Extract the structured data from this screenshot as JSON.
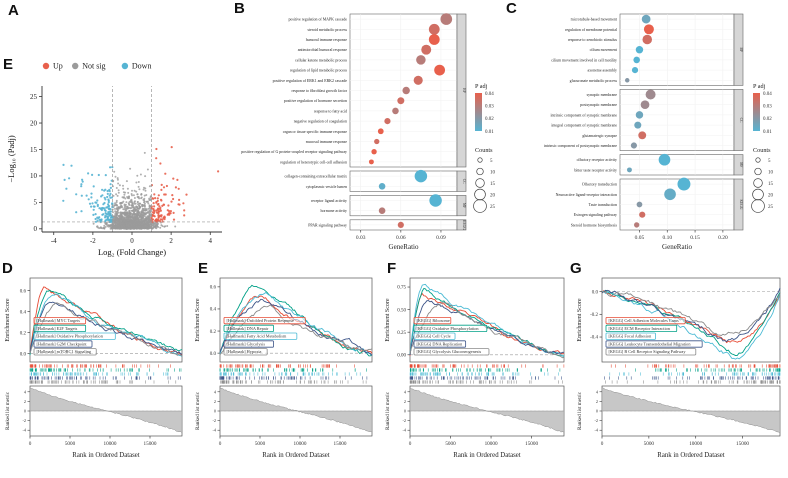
{
  "panel_labels": {
    "a": "A",
    "b": "B",
    "c": "C",
    "d": "D",
    "e": "E",
    "f": "F",
    "g": "G",
    "e_volcano": "E"
  },
  "colors": {
    "up": "#E8604C",
    "notsig": "#9B9B9B",
    "down": "#56B4D3",
    "background": "#FFFFFF"
  },
  "chart_data": [
    {
      "id": "volcano",
      "type": "scatter",
      "panel_label": "A",
      "xlabel": "Log₂ (Fold Change)",
      "ylabel": "−Log₁₀ (Padj)",
      "xticks": [
        -4,
        -2,
        0,
        2,
        4
      ],
      "yticks": [
        0,
        5,
        10,
        15,
        20,
        25
      ],
      "xlim": [
        -4.6,
        4.6
      ],
      "ylim": [
        -0.6,
        27
      ],
      "threshold_x": [
        -1,
        1
      ],
      "threshold_y": 1.3,
      "n_points": 1800,
      "legend": [
        {
          "label": "Up",
          "color": "#E8604C"
        },
        {
          "label": "Not sig",
          "color": "#9B9B9B"
        },
        {
          "label": "Down",
          "color": "#56B4D3"
        }
      ]
    },
    {
      "id": "go-dotplot-b",
      "type": "dotplot",
      "panel_label": "B",
      "xlabel": "GeneRatio",
      "xticks": [
        0.03,
        0.06,
        0.09
      ],
      "xtick_labels": [
        "0.03",
        "0.06",
        "0.09"
      ],
      "xlim": [
        0.022,
        0.102
      ],
      "color_scale": {
        "title": "P adj",
        "tick_labels": [
          "0.04",
          "0.03",
          "0.02",
          "0.01"
        ],
        "domain": [
          0.01,
          0.04
        ],
        "low_color": "#56B4D3",
        "high_color": "#E8604C"
      },
      "size_scale": {
        "title": "Counts",
        "ticks": [
          5,
          10,
          15,
          20,
          25
        ]
      },
      "facets": [
        {
          "label": "BP",
          "rows": [
            {
              "term": "positive regulation of MAPK cascade",
              "ratio": 0.094,
              "padj": 0.03,
              "count": 22
            },
            {
              "term": "steroid metabolic process",
              "ratio": 0.085,
              "padj": 0.035,
              "count": 20
            },
            {
              "term": "humoral immune response",
              "ratio": 0.085,
              "padj": 0.04,
              "count": 20
            },
            {
              "term": "antimicrobial humoral response",
              "ratio": 0.079,
              "padj": 0.035,
              "count": 18
            },
            {
              "term": "cellular ketone metabolic process",
              "ratio": 0.075,
              "padj": 0.03,
              "count": 17
            },
            {
              "term": "regulation of lipid metabolic process",
              "ratio": 0.089,
              "padj": 0.04,
              "count": 20
            },
            {
              "term": "positive regulation of ERK1 and ERK2 cascade",
              "ratio": 0.073,
              "padj": 0.035,
              "count": 16
            },
            {
              "term": "response to fibroblast growth factor",
              "ratio": 0.064,
              "padj": 0.03,
              "count": 12
            },
            {
              "term": "positive regulation of hormone secretion",
              "ratio": 0.06,
              "padj": 0.035,
              "count": 11
            },
            {
              "term": "response to fatty acid",
              "ratio": 0.056,
              "padj": 0.03,
              "count": 10
            },
            {
              "term": "negative regulation of coagulation",
              "ratio": 0.05,
              "padj": 0.035,
              "count": 9
            },
            {
              "term": "organ or tissue specific immune response",
              "ratio": 0.045,
              "padj": 0.04,
              "count": 8
            },
            {
              "term": "mucosal immune response",
              "ratio": 0.042,
              "padj": 0.035,
              "count": 7
            },
            {
              "term": "positive regulation of G protein-coupled receptor signaling pathway",
              "ratio": 0.04,
              "padj": 0.04,
              "count": 7
            },
            {
              "term": "regulation of heterotypic cell-cell adhesion",
              "ratio": 0.038,
              "padj": 0.04,
              "count": 6
            }
          ]
        },
        {
          "label": "CC",
          "rows": [
            {
              "term": "collagen-containing extracellular matrix",
              "ratio": 0.075,
              "padj": 0.01,
              "count": 24
            },
            {
              "term": "cytoplasmic vesicle lumen",
              "ratio": 0.046,
              "padj": 0.012,
              "count": 10
            }
          ]
        },
        {
          "label": "MF",
          "rows": [
            {
              "term": "receptor ligand activity",
              "ratio": 0.086,
              "padj": 0.01,
              "count": 24
            },
            {
              "term": "hormone activity",
              "ratio": 0.046,
              "padj": 0.03,
              "count": 10
            }
          ]
        },
        {
          "label": "KEGG",
          "rows": [
            {
              "term": "PPAR signaling pathway",
              "ratio": 0.06,
              "padj": 0.035,
              "count": 9
            }
          ]
        }
      ]
    },
    {
      "id": "go-dotplot-c",
      "type": "dotplot",
      "panel_label": "C",
      "xlabel": "GeneRatio",
      "xticks": [
        0.05,
        0.1,
        0.15,
        0.2
      ],
      "xtick_labels": [
        "0.05",
        "0.10",
        "0.15",
        "0.20"
      ],
      "xlim": [
        0.015,
        0.22
      ],
      "color_scale": {
        "title": "P adj",
        "tick_labels": [
          "0.04",
          "0.03",
          "0.02",
          "0.01"
        ],
        "domain": [
          0.01,
          0.04
        ],
        "low_color": "#56B4D3",
        "high_color": "#E8604C"
      },
      "size_scale": {
        "title": "Counts",
        "ticks": [
          5,
          10,
          15,
          20,
          25
        ]
      },
      "facets": [
        {
          "label": "BP",
          "rows": [
            {
              "term": "microtubule-based movement",
              "ratio": 0.062,
              "padj": 0.015,
              "count": 15
            },
            {
              "term": "regulation of membrane potential",
              "ratio": 0.067,
              "padj": 0.04,
              "count": 18
            },
            {
              "term": "response to xenobiotic stimulus",
              "ratio": 0.064,
              "padj": 0.035,
              "count": 17
            },
            {
              "term": "cilium movement",
              "ratio": 0.05,
              "padj": 0.01,
              "count": 12
            },
            {
              "term": "cilium movement involved in cell motility",
              "ratio": 0.045,
              "padj": 0.01,
              "count": 10
            },
            {
              "term": "axoneme assembly",
              "ratio": 0.042,
              "padj": 0.01,
              "count": 9
            },
            {
              "term": "glucuronate metabolic process",
              "ratio": 0.028,
              "padj": 0.02,
              "count": 5
            }
          ]
        },
        {
          "label": "CC",
          "rows": [
            {
              "term": "synaptic membrane",
              "ratio": 0.07,
              "padj": 0.025,
              "count": 18
            },
            {
              "term": "postsynaptic membrane",
              "ratio": 0.06,
              "padj": 0.025,
              "count": 15
            },
            {
              "term": "intrinsic component of synaptic membrane",
              "ratio": 0.05,
              "padj": 0.015,
              "count": 12
            },
            {
              "term": "integral component of synaptic membrane",
              "ratio": 0.047,
              "padj": 0.015,
              "count": 11
            },
            {
              "term": "glutamatergic synapse",
              "ratio": 0.055,
              "padj": 0.035,
              "count": 13
            },
            {
              "term": "intrinsic component of postsynaptic membrane",
              "ratio": 0.04,
              "padj": 0.02,
              "count": 9
            }
          ]
        },
        {
          "label": "MF",
          "rows": [
            {
              "term": "olfactory receptor activity",
              "ratio": 0.095,
              "padj": 0.01,
              "count": 22
            },
            {
              "term": "bitter taste receptor activity",
              "ratio": 0.032,
              "padj": 0.015,
              "count": 6
            }
          ]
        },
        {
          "label": "KEGG",
          "rows": [
            {
              "term": "Olfactory transduction",
              "ratio": 0.13,
              "padj": 0.01,
              "count": 25
            },
            {
              "term": "Neuroactive ligand-receptor interaction",
              "ratio": 0.105,
              "padj": 0.013,
              "count": 22
            },
            {
              "term": "Taste transduction",
              "ratio": 0.05,
              "padj": 0.02,
              "count": 8
            },
            {
              "term": "Estrogen signaling pathway",
              "ratio": 0.055,
              "padj": 0.035,
              "count": 9
            },
            {
              "term": "Steroid hormone biosynthesis",
              "ratio": 0.045,
              "padj": 0.03,
              "count": 7
            }
          ]
        }
      ]
    },
    {
      "id": "gsea-d",
      "type": "gsea",
      "panel_label": "D",
      "ylabel_top": "Enrichment Score",
      "ylabel_bottom": "Ranked list metric",
      "xlabel": "Rank in Ordered Dataset",
      "xticks": [
        0,
        5000,
        10000,
        15000
      ],
      "xmax": 19000,
      "es_ticks": [
        0.0,
        0.2,
        0.4,
        0.6
      ],
      "es_tick_labels": [
        "0.0",
        "0.2",
        "0.4",
        "0.6"
      ],
      "es_lim": [
        -0.08,
        0.72
      ],
      "rank_ticks": [
        4,
        2,
        0,
        -2,
        -4
      ],
      "rank_lim": [
        -5.2,
        5.2
      ],
      "series": [
        {
          "name": "[Hallmark] MYC Targets",
          "color": "#E64B35",
          "peak": 0.63,
          "peak_pos": 0.1
        },
        {
          "name": "[Hallmark] E2F Targets",
          "color": "#00A087",
          "peak": 0.6,
          "peak_pos": 0.13
        },
        {
          "name": "[Hallmark] Oxidative Phosphorylation",
          "color": "#4DBBD5",
          "peak": 0.57,
          "peak_pos": 0.17
        },
        {
          "name": "[Hallmark] G2M Checkpoint",
          "color": "#3C5488",
          "peak": 0.52,
          "peak_pos": 0.14
        },
        {
          "name": "[Hallmark] mTORC1 Signaling",
          "color": "#8A8A8A",
          "peak": 0.46,
          "peak_pos": 0.2
        }
      ]
    },
    {
      "id": "gsea-e",
      "type": "gsea",
      "panel_label": "E",
      "ylabel_top": "Enrichment Score",
      "ylabel_bottom": "Ranked list metric",
      "xlabel": "Rank in Ordered Dataset",
      "xticks": [
        0,
        5000,
        10000,
        15000
      ],
      "xmax": 19000,
      "es_ticks": [
        0.0,
        0.2,
        0.4,
        0.6
      ],
      "es_tick_labels": [
        "0.0",
        "0.2",
        "0.4",
        "0.6"
      ],
      "es_lim": [
        -0.08,
        0.68
      ],
      "rank_ticks": [
        4,
        2,
        0,
        -2,
        -4
      ],
      "rank_lim": [
        -5.2,
        5.2
      ],
      "series": [
        {
          "name": "[Hallmark] Unfolded Protein Response",
          "color": "#E64B35",
          "peak": 0.55,
          "peak_pos": 0.28
        },
        {
          "name": "[Hallmark] DNA Repair",
          "color": "#00A087",
          "peak": 0.6,
          "peak_pos": 0.24
        },
        {
          "name": "[Hallmark] Fatty Acid Metabolism",
          "color": "#4DBBD5",
          "peak": 0.52,
          "peak_pos": 0.33
        },
        {
          "name": "[Hallmark] Glycolysis",
          "color": "#3C5488",
          "peak": 0.46,
          "peak_pos": 0.3
        },
        {
          "name": "[Hallmark] Hypoxia",
          "color": "#8A8A8A",
          "peak": 0.4,
          "peak_pos": 0.34
        }
      ]
    },
    {
      "id": "gsea-f",
      "type": "gsea",
      "panel_label": "F",
      "ylabel_top": "Enrichment Score",
      "ylabel_bottom": "Ranked list metric",
      "xlabel": "Rank in Ordered Dataset",
      "xticks": [
        0,
        5000,
        10000,
        15000
      ],
      "xmax": 19000,
      "es_ticks": [
        0.0,
        0.25,
        0.5,
        0.75
      ],
      "es_tick_labels": [
        "0.00",
        "0.25",
        "0.50",
        "0.75"
      ],
      "es_lim": [
        -0.08,
        0.85
      ],
      "rank_ticks": [
        4,
        2,
        0,
        -2,
        -4
      ],
      "rank_lim": [
        -5.2,
        5.2
      ],
      "series": [
        {
          "name": "[KEGG] Ribosome",
          "color": "#E64B35",
          "peak": 0.68,
          "peak_pos": 0.08
        },
        {
          "name": "[KEGG] Oxidative Phosphorylation",
          "color": "#00A087",
          "peak": 0.72,
          "peak_pos": 0.1
        },
        {
          "name": "[KEGG] Cell Cycle",
          "color": "#4DBBD5",
          "peak": 0.78,
          "peak_pos": 0.09
        },
        {
          "name": "[KEGG] DNA Replication",
          "color": "#3C5488",
          "peak": 0.62,
          "peak_pos": 0.12
        },
        {
          "name": "[KEGG] Glycolysis Gluconeogenesis",
          "color": "#8A8A8A",
          "peak": 0.55,
          "peak_pos": 0.22
        }
      ]
    },
    {
      "id": "gsea-g",
      "type": "gsea",
      "panel_label": "G",
      "ylabel_top": "Enrichment Score",
      "ylabel_bottom": "Ranked list metric",
      "xlabel": "Rank in Ordered Dataset",
      "xticks": [
        0,
        5000,
        10000,
        15000
      ],
      "xmax": 19000,
      "es_ticks": [
        0.0,
        -0.2,
        -0.4
      ],
      "es_tick_labels": [
        "0.0",
        "-0.2",
        "-0.4"
      ],
      "es_lim": [
        -0.62,
        0.12
      ],
      "rank_ticks": [
        4,
        2,
        0,
        -2,
        -4
      ],
      "rank_lim": [
        -5.2,
        5.2
      ],
      "series": [
        {
          "name": "[KEGG] Cell Adhesion Molecules Cams",
          "color": "#E64B35",
          "peak": -0.48,
          "peak_pos": 0.7
        },
        {
          "name": "[KEGG] ECM Receptor Interaction",
          "color": "#00A087",
          "peak": -0.54,
          "peak_pos": 0.73
        },
        {
          "name": "[KEGG] Focal Adhesion",
          "color": "#4DBBD5",
          "peak": -0.58,
          "peak_pos": 0.75
        },
        {
          "name": "[KEGG] Leukocyte Transendothelial Migration",
          "color": "#3C5488",
          "peak": -0.44,
          "peak_pos": 0.68
        },
        {
          "name": "[KEGG] B Cell Receptor Signaling Pathway",
          "color": "#8A8A8A",
          "peak": -0.38,
          "peak_pos": 0.64
        }
      ]
    }
  ]
}
